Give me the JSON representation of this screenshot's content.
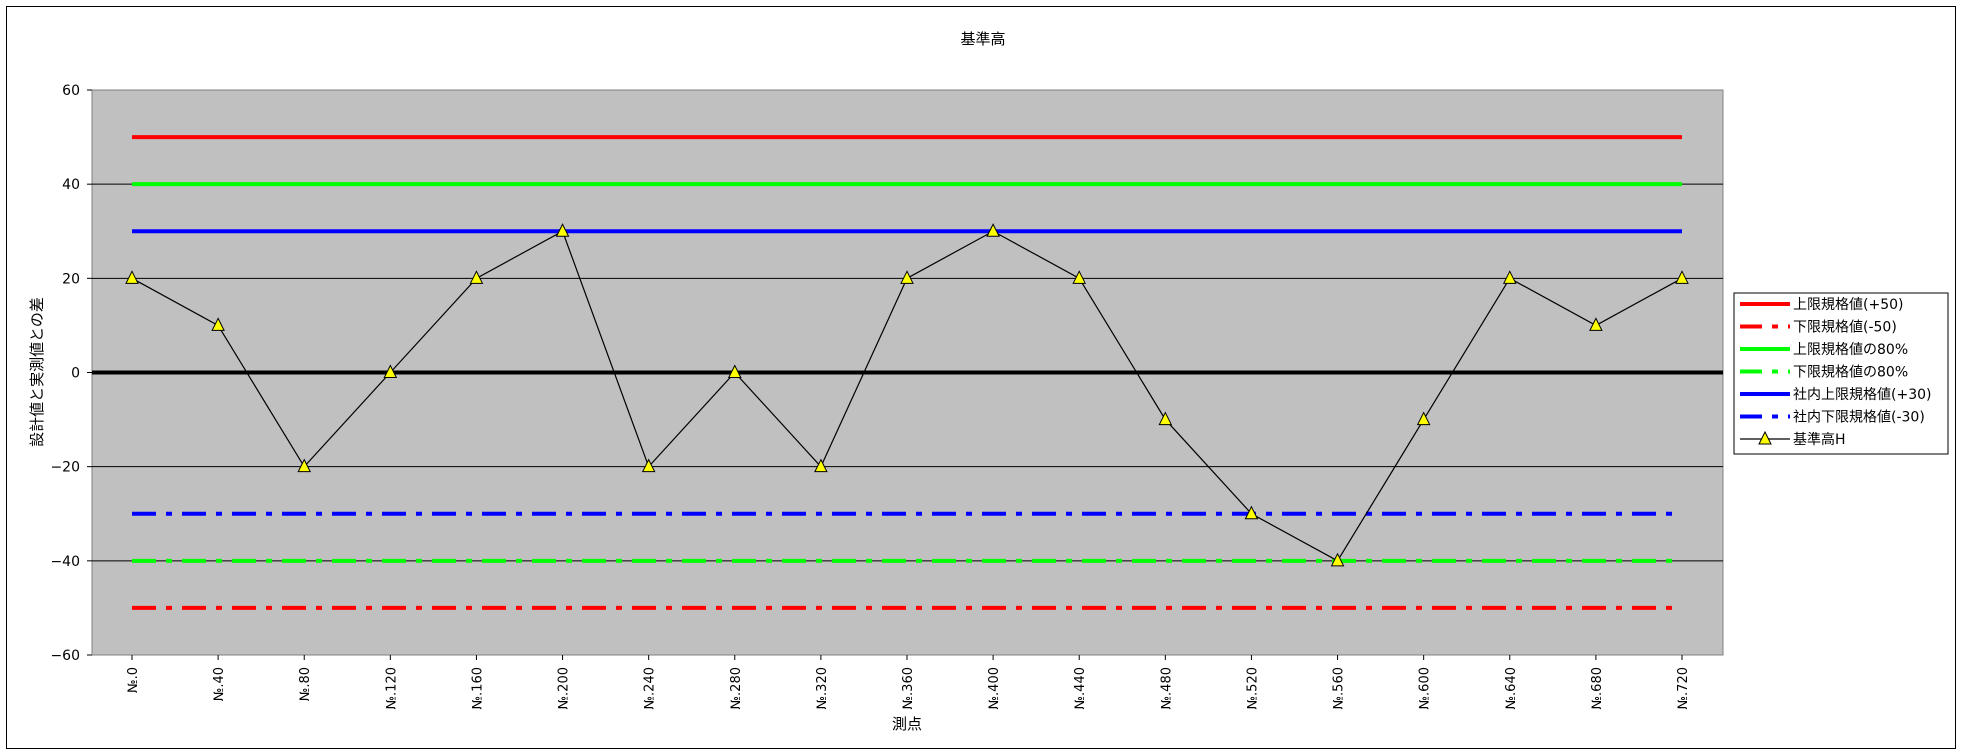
{
  "chart_data": {
    "type": "line",
    "title": "基準高",
    "xlabel": "測点",
    "ylabel": "設計値と実測値との差",
    "ylim": [
      -60,
      60
    ],
    "yticks": [
      60,
      40,
      20,
      0,
      -20,
      -40,
      -60
    ],
    "yticks_labels": [
      "60",
      "40",
      "20",
      "0",
      "−20",
      "−40",
      "−60"
    ],
    "categories": [
      "№.0",
      "№.40",
      "№.80",
      "№.120",
      "№.160",
      "№.200",
      "№.240",
      "№.280",
      "№.320",
      "№.360",
      "№.400",
      "№.440",
      "№.480",
      "№.520",
      "№.560",
      "№.600",
      "№.640",
      "№.680",
      "№.720"
    ],
    "series": [
      {
        "name": "上限規格値(+50)",
        "value": 50,
        "color": "#ff0000",
        "style": "solid"
      },
      {
        "name": "下限規格値(-50)",
        "value": -50,
        "color": "#ff0000",
        "style": "dashdot"
      },
      {
        "name": "上限規格値の80%",
        "value": 40,
        "color": "#00ff00",
        "style": "solid"
      },
      {
        "name": "下限規格値の80%",
        "value": -40,
        "color": "#00ff00",
        "style": "dashdot"
      },
      {
        "name": "社内上限規格値(+30)",
        "value": 30,
        "color": "#0000ff",
        "style": "solid"
      },
      {
        "name": "社内下限規格値(-30)",
        "value": -30,
        "color": "#0000ff",
        "style": "dashdot"
      },
      {
        "name": "基準高H",
        "values": [
          20,
          10,
          -20,
          0,
          20,
          30,
          -20,
          0,
          -20,
          20,
          30,
          20,
          -10,
          -30,
          -40,
          -10,
          20,
          10,
          20
        ],
        "color": "#000000",
        "marker": "triangle",
        "marker_color": "#ffff00"
      }
    ],
    "grid": true,
    "plot_background": "#c0c0c0",
    "legend_position": "right"
  }
}
